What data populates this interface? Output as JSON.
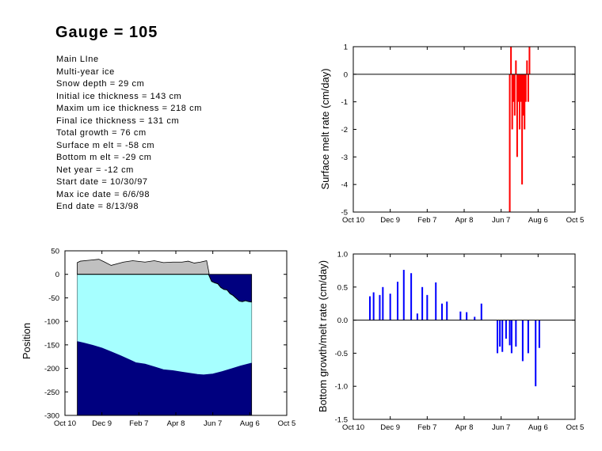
{
  "title": "Gauge = 105",
  "info": [
    "Main LIne",
    "Multi-year ice",
    "Snow depth = 29 cm",
    "Initial ice thickness = 143 cm",
    "Maxim um ice thickness = 218 cm",
    "Final ice thickness = 131 cm",
    "Total growth =  76 cm",
    "Surface m elt = -58 cm",
    "Bottom  m elt =  -29 cm",
    "Net year =  -12 cm",
    "Start date = 10/30/97",
    "Max ice date = 6/6/98",
    "End date = 8/13/98"
  ],
  "colors": {
    "snow": "#c0c0c0",
    "ice": "#a6ffff",
    "water": "#00007f",
    "surface_melt": "#ff0000",
    "bottom_growth": "#0000ff"
  },
  "chart_data": [
    {
      "id": "position",
      "type": "area",
      "xlabel": "",
      "ylabel": "Position",
      "xlim": [
        0,
        360
      ],
      "ylim": [
        -300,
        50
      ],
      "xticks": [
        0,
        60,
        120,
        180,
        240,
        300,
        360
      ],
      "xtick_labels": [
        "Oct 10",
        "Dec 9",
        "Feb 7",
        "Apr 8",
        "Jun 7",
        "Aug 6",
        "Oct 5"
      ],
      "yticks": [
        50,
        0,
        -50,
        -100,
        -150,
        -200,
        -250,
        -300
      ],
      "series": [
        {
          "role": "snow surface",
          "x": [
            20,
            25,
            40,
            55,
            63,
            75,
            95,
            110,
            130,
            145,
            160,
            175,
            190,
            200,
            210,
            220,
            230,
            234
          ],
          "y": [
            25,
            28,
            30,
            32,
            27,
            19,
            26,
            29,
            26,
            29,
            25,
            26,
            26,
            28,
            24,
            26,
            29,
            2
          ]
        },
        {
          "role": "ice top",
          "x": [
            20,
            233,
            238,
            243,
            248,
            253,
            258,
            263,
            268,
            273,
            278,
            283,
            288,
            293,
            298,
            303
          ],
          "y": [
            0,
            0,
            -15,
            -18,
            -20,
            -28,
            -32,
            -33,
            -41,
            -45,
            -51,
            -57,
            -58,
            -56,
            -58,
            -59
          ]
        },
        {
          "role": "ice bottom",
          "x": [
            20,
            30,
            45,
            60,
            75,
            90,
            105,
            115,
            130,
            145,
            160,
            175,
            190,
            205,
            215,
            225,
            240,
            255,
            270,
            285,
            303
          ],
          "y": [
            -143,
            -146,
            -151,
            -157,
            -165,
            -173,
            -182,
            -188,
            -191,
            -197,
            -203,
            -205,
            -208,
            -211,
            -213,
            -214,
            -212,
            -207,
            -201,
            -195,
            -189
          ]
        }
      ]
    },
    {
      "id": "surface-melt",
      "type": "bar",
      "xlabel": "",
      "ylabel": "Surface melt rate  (cm/day)",
      "xlim": [
        0,
        360
      ],
      "ylim": [
        -5,
        1
      ],
      "xticks": [
        0,
        60,
        120,
        180,
        240,
        300,
        360
      ],
      "xtick_labels": [
        "Oct 10",
        "Dec 9",
        "Feb 7",
        "Apr 8",
        "Jun 7",
        "Aug 6",
        "Oct 5"
      ],
      "yticks": [
        1,
        0,
        -1,
        -2,
        -3,
        -4,
        -5
      ],
      "x": [
        254,
        256,
        258,
        260,
        262,
        264,
        266,
        268,
        270,
        272,
        274,
        276,
        278,
        280,
        282,
        284,
        286,
        288,
        290,
        292
      ],
      "values": [
        -5,
        1,
        -2,
        -1,
        -1.5,
        0.5,
        -3,
        -1,
        -2,
        -1,
        -4,
        -1.5,
        -2,
        -1,
        0.5,
        -1,
        1,
        0,
        0,
        0
      ]
    },
    {
      "id": "bottom-growth",
      "type": "bar",
      "xlabel": "",
      "ylabel": "Bottom growth/melt rate  (cm/day)",
      "xlim": [
        0,
        360
      ],
      "ylim": [
        -1.5,
        1
      ],
      "xticks": [
        0,
        60,
        120,
        180,
        240,
        300,
        360
      ],
      "xtick_labels": [
        "Oct 10",
        "Dec 9",
        "Feb 7",
        "Apr 8",
        "Jun 7",
        "Aug 6",
        "Oct 5"
      ],
      "yticks": [
        1,
        0.5,
        0,
        -0.5,
        -1,
        -1.5
      ],
      "ytick_labels": [
        "1.0",
        "0.5",
        "0.0",
        "-0.5",
        "-1.0",
        "-1.5"
      ],
      "x": [
        27,
        33,
        43,
        48,
        60,
        72,
        82,
        94,
        104,
        112,
        120,
        134,
        144,
        152,
        174,
        184,
        197,
        208,
        234,
        238,
        242,
        248,
        254,
        257,
        264,
        275,
        284,
        296,
        302,
        308
      ],
      "values": [
        0.36,
        0.42,
        0.38,
        0.5,
        0.4,
        0.58,
        0.76,
        0.71,
        0.1,
        0.5,
        0.38,
        0.57,
        0.25,
        0.28,
        0.13,
        0.12,
        0.05,
        0.25,
        -0.5,
        -0.4,
        -0.48,
        -0.28,
        -0.38,
        -0.5,
        -0.4,
        -0.62,
        -0.5,
        -1.0,
        -0.42,
        0
      ]
    }
  ]
}
